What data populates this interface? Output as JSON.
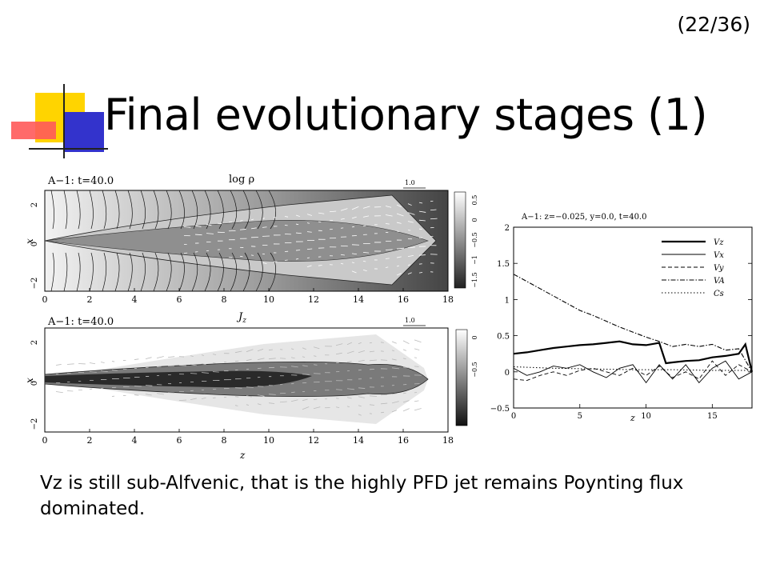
{
  "slide": {
    "page_number": "(22/36)",
    "title": "Final evolutionary stages (1)",
    "caption": "Vz is still sub-Alfvenic, that is the highly PFD jet remains Poynting flux dominated."
  },
  "colors": {
    "deco_yellow": "#ffd400",
    "deco_blue": "#3333cc",
    "deco_red": "#ff5a5a"
  },
  "panel_top": {
    "label": "A−1:  t=40.0",
    "quantity": "log ρ",
    "vector_scale": "1.0",
    "x_ticks": [
      "0",
      "2",
      "4",
      "6",
      "8",
      "10",
      "12",
      "14",
      "16",
      "18"
    ],
    "y_ticks": [
      "2",
      "0",
      "−2"
    ],
    "y_axis_label": "x",
    "colorbar_ticks": [
      "0.5",
      "0",
      "−0.5",
      "−1",
      "−1.5"
    ]
  },
  "panel_bottom": {
    "label": "A−1:  t=40.0",
    "quantity": "Jz",
    "vector_scale": "1.0",
    "x_ticks": [
      "0",
      "2",
      "4",
      "6",
      "8",
      "10",
      "12",
      "14",
      "16",
      "18"
    ],
    "y_ticks": [
      "2",
      "0",
      "−2"
    ],
    "y_axis_label": "x",
    "x_axis_label": "z",
    "colorbar_ticks": [
      "0",
      "−0.5"
    ]
  },
  "chart_data": {
    "type": "line",
    "title": "A−1:  z=−0.025,  y=0.0,  t=40.0",
    "xlabel": "z",
    "ylabel": "",
    "xlim": [
      0,
      18
    ],
    "ylim": [
      -0.5,
      2
    ],
    "x_ticks": [
      0,
      5,
      10,
      15
    ],
    "y_ticks": [
      -0.5,
      0,
      0.5,
      1,
      1.5,
      2
    ],
    "legend_position": "top-right",
    "series": [
      {
        "name": "Vz",
        "style": "thick-solid",
        "x": [
          0,
          1,
          2,
          3,
          4,
          5,
          6,
          7,
          8,
          8.5,
          9,
          10,
          11,
          11.5,
          12,
          13,
          14,
          15,
          16,
          17,
          17.5,
          18
        ],
        "y": [
          0.25,
          0.27,
          0.3,
          0.33,
          0.35,
          0.37,
          0.38,
          0.4,
          0.42,
          0.4,
          0.38,
          0.37,
          0.4,
          0.12,
          0.13,
          0.15,
          0.16,
          0.2,
          0.22,
          0.25,
          0.38,
          0.0
        ]
      },
      {
        "name": "Vx",
        "style": "thin-solid",
        "x": [
          0,
          1,
          2,
          3,
          4,
          5,
          6,
          7,
          8,
          9,
          10,
          11,
          12,
          13,
          14,
          15,
          16,
          17,
          18
        ],
        "y": [
          0.05,
          -0.05,
          0.0,
          0.08,
          0.05,
          0.1,
          0.0,
          -0.08,
          0.05,
          0.1,
          -0.15,
          0.1,
          -0.1,
          0.1,
          -0.15,
          0.05,
          0.15,
          -0.1,
          0.0
        ]
      },
      {
        "name": "Vy",
        "style": "dashed",
        "x": [
          0,
          1,
          2,
          3,
          4,
          5,
          6,
          7,
          8,
          9,
          10,
          11,
          12,
          13,
          14,
          15,
          16,
          17,
          18
        ],
        "y": [
          -0.1,
          -0.12,
          -0.05,
          0.0,
          -0.05,
          0.02,
          0.05,
          0.0,
          -0.05,
          0.05,
          -0.05,
          0.08,
          -0.08,
          0.0,
          -0.1,
          0.15,
          -0.05,
          0.1,
          0.0
        ]
      },
      {
        "name": "VA",
        "style": "dash-dot",
        "x": [
          0,
          1,
          2,
          3,
          4,
          5,
          6,
          7,
          8,
          9,
          10,
          11,
          12,
          13,
          14,
          15,
          16,
          17,
          18
        ],
        "y": [
          1.35,
          1.25,
          1.15,
          1.05,
          0.95,
          0.85,
          0.78,
          0.7,
          0.62,
          0.55,
          0.48,
          0.42,
          0.35,
          0.38,
          0.35,
          0.38,
          0.3,
          0.32,
          0.0
        ]
      },
      {
        "name": "Cs",
        "style": "dotted",
        "x": [
          0,
          3,
          6,
          9,
          12,
          15,
          18
        ],
        "y": [
          0.07,
          0.05,
          0.04,
          0.03,
          0.03,
          0.02,
          0.02
        ]
      }
    ]
  }
}
